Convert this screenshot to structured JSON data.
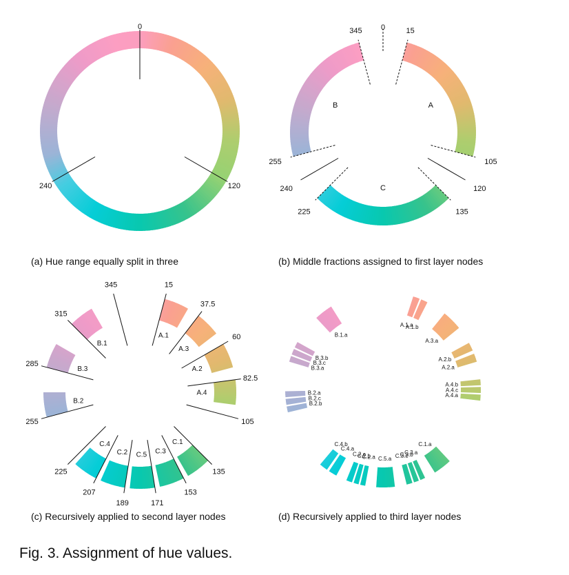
{
  "figure": {
    "title": "Fig. 3. Assignment of hue values.",
    "captions": {
      "a": "(a) Hue range equally split in three",
      "b": "(b) Middle fractions assigned to first layer nodes",
      "c": "(c) Recursively applied to second layer nodes",
      "d": "(d) Recursively applied to third layer nodes"
    }
  },
  "panel_a": {
    "ring_range": [
      0,
      360
    ],
    "divisions": [
      0,
      120,
      240
    ],
    "labels": [
      {
        "text": "0",
        "hue": 0
      },
      {
        "text": "120",
        "hue": 120
      },
      {
        "text": "240",
        "hue": 240
      }
    ]
  },
  "panel_b": {
    "nodes": [
      {
        "name": "A",
        "range": [
          15,
          105
        ]
      },
      {
        "name": "C",
        "range": [
          135,
          225
        ]
      },
      {
        "name": "B",
        "range": [
          255,
          345
        ]
      }
    ],
    "labels": [
      {
        "text": "0",
        "hue": 0
      },
      {
        "text": "15",
        "hue": 15
      },
      {
        "text": "105",
        "hue": 105
      },
      {
        "text": "120",
        "hue": 120
      },
      {
        "text": "135",
        "hue": 135
      },
      {
        "text": "225",
        "hue": 225
      },
      {
        "text": "240",
        "hue": 240
      },
      {
        "text": "255",
        "hue": 255
      },
      {
        "text": "345",
        "hue": 345
      }
    ]
  },
  "panel_c": {
    "nodes": [
      {
        "name": "A.1",
        "range": [
          15,
          30
        ]
      },
      {
        "name": "A.3",
        "range": [
          37.5,
          52.5
        ]
      },
      {
        "name": "A.2",
        "range": [
          60,
          75
        ]
      },
      {
        "name": "A.4",
        "range": [
          82.5,
          97.5
        ]
      },
      {
        "name": "C.1",
        "range": [
          135,
          150
        ]
      },
      {
        "name": "C.3",
        "range": [
          153,
          168
        ]
      },
      {
        "name": "C.5",
        "range": [
          171,
          186
        ]
      },
      {
        "name": "C.2",
        "range": [
          189,
          204
        ]
      },
      {
        "name": "C.4",
        "range": [
          207,
          222
        ]
      },
      {
        "name": "B.2",
        "range": [
          255,
          270
        ]
      },
      {
        "name": "B.3",
        "range": [
          285,
          300
        ]
      },
      {
        "name": "B.1",
        "range": [
          315,
          330
        ]
      }
    ],
    "labels": [
      {
        "text": "345",
        "hue": 345
      },
      {
        "text": "15",
        "hue": 15
      },
      {
        "text": "37.5",
        "hue": 37.5
      },
      {
        "text": "60",
        "hue": 60
      },
      {
        "text": "82.5",
        "hue": 82.5
      },
      {
        "text": "105",
        "hue": 105
      },
      {
        "text": "135",
        "hue": 135
      },
      {
        "text": "153",
        "hue": 153
      },
      {
        "text": "171",
        "hue": 171
      },
      {
        "text": "189",
        "hue": 189
      },
      {
        "text": "207",
        "hue": 207
      },
      {
        "text": "225",
        "hue": 225
      },
      {
        "text": "255",
        "hue": 255
      },
      {
        "text": "285",
        "hue": 285
      },
      {
        "text": "315",
        "hue": 315
      }
    ]
  },
  "panel_d": {
    "nodes": [
      {
        "name": "A.1.a",
        "range": [
          18,
          22
        ]
      },
      {
        "name": "A.1.b",
        "range": [
          23,
          27
        ]
      },
      {
        "name": "A.3.a",
        "range": [
          39,
          51
        ]
      },
      {
        "name": "A.2.b",
        "range": [
          61.5,
          66.5
        ]
      },
      {
        "name": "A.2.a",
        "range": [
          68.5,
          73.5
        ]
      },
      {
        "name": "A.4.b",
        "range": [
          84,
          87.5
        ]
      },
      {
        "name": "A.4.c",
        "range": [
          88.5,
          92
        ]
      },
      {
        "name": "A.4.a",
        "range": [
          93,
          96.5
        ]
      },
      {
        "name": "C.1.a",
        "range": [
          137,
          148
        ]
      },
      {
        "name": "C.3.a",
        "range": [
          154.5,
          157.5
        ]
      },
      {
        "name": "C.3.b",
        "range": [
          158.5,
          161.5
        ]
      },
      {
        "name": "C.3.c",
        "range": [
          162.5,
          166
        ]
      },
      {
        "name": "C.5.a",
        "range": [
          173,
          184
        ]
      },
      {
        "name": "C.2.a",
        "range": [
          190.5,
          193.5
        ]
      },
      {
        "name": "C.2.b",
        "range": [
          194.5,
          197.5
        ]
      },
      {
        "name": "C.2.c",
        "range": [
          198.5,
          202
        ]
      },
      {
        "name": "C.4.a",
        "range": [
          208.5,
          213.5
        ]
      },
      {
        "name": "C.4.b",
        "range": [
          215,
          220
        ]
      },
      {
        "name": "B.2.b",
        "range": [
          256.5,
          260
        ]
      },
      {
        "name": "B.2.c",
        "range": [
          261,
          264.5
        ]
      },
      {
        "name": "B.2.a",
        "range": [
          265.5,
          269
        ]
      },
      {
        "name": "B.3.a",
        "range": [
          286.5,
          290
        ]
      },
      {
        "name": "B.3.c",
        "range": [
          291,
          294.5
        ]
      },
      {
        "name": "B.3.b",
        "range": [
          295.5,
          299
        ]
      },
      {
        "name": "B.1.a",
        "range": [
          317,
          328
        ]
      }
    ]
  }
}
